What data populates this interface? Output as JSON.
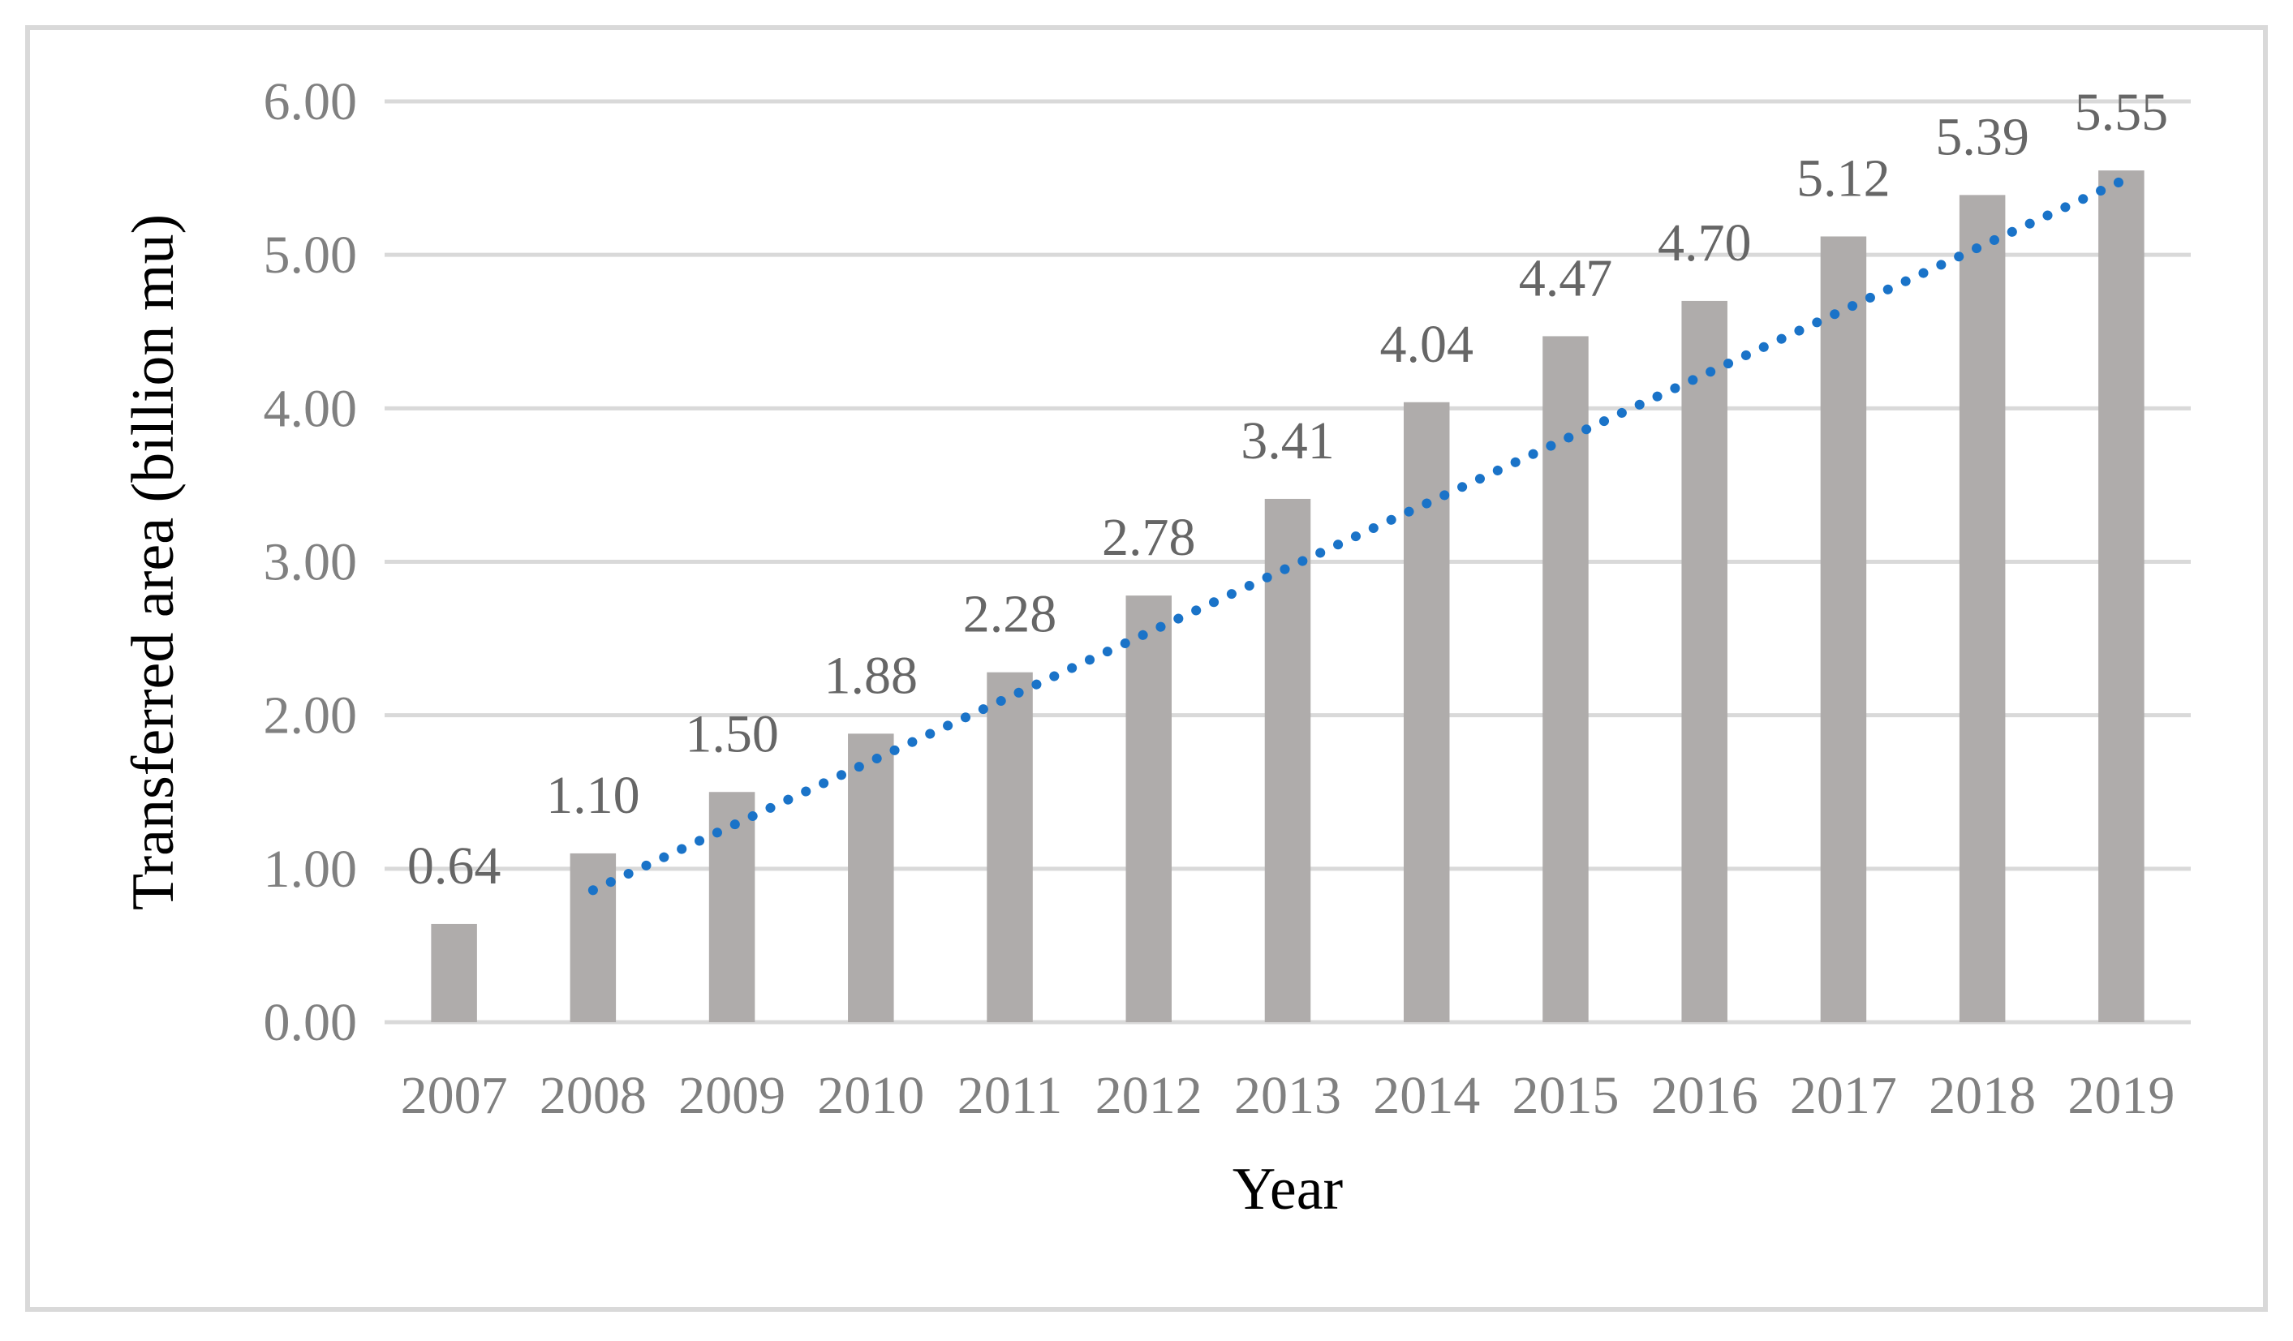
{
  "chart_data": {
    "type": "bar",
    "title": "",
    "xlabel": "Year",
    "ylabel": "Transferred area (billion mu)",
    "categories": [
      "2007",
      "2008",
      "2009",
      "2010",
      "2011",
      "2012",
      "2013",
      "2014",
      "2015",
      "2016",
      "2017",
      "2018",
      "2019"
    ],
    "values": [
      0.64,
      1.1,
      1.5,
      1.88,
      2.28,
      2.78,
      3.41,
      4.04,
      4.47,
      4.7,
      5.12,
      5.39,
      5.55
    ],
    "data_labels": [
      "0.64",
      "1.10",
      "1.50",
      "1.88",
      "2.28",
      "2.78",
      "3.41",
      "4.04",
      "4.47",
      "4.70",
      "5.12",
      "5.39",
      "5.55"
    ],
    "ylim": [
      0,
      6
    ],
    "yticks": [
      "0.00",
      "1.00",
      "2.00",
      "3.00",
      "4.00",
      "5.00",
      "6.00"
    ],
    "grid": true,
    "legend": "none",
    "trendline": {
      "style": "dotted",
      "type": "linear",
      "from": "2008",
      "to": "2019",
      "start_value": 0.86,
      "end_value": 5.48
    },
    "colors": {
      "bar": "#AFACAB",
      "trendline": "#1A73C8",
      "grid": "#D9D9D9",
      "tick_text": "#808080",
      "data_label_text": "#666666",
      "border": "#D9D9D9"
    }
  }
}
